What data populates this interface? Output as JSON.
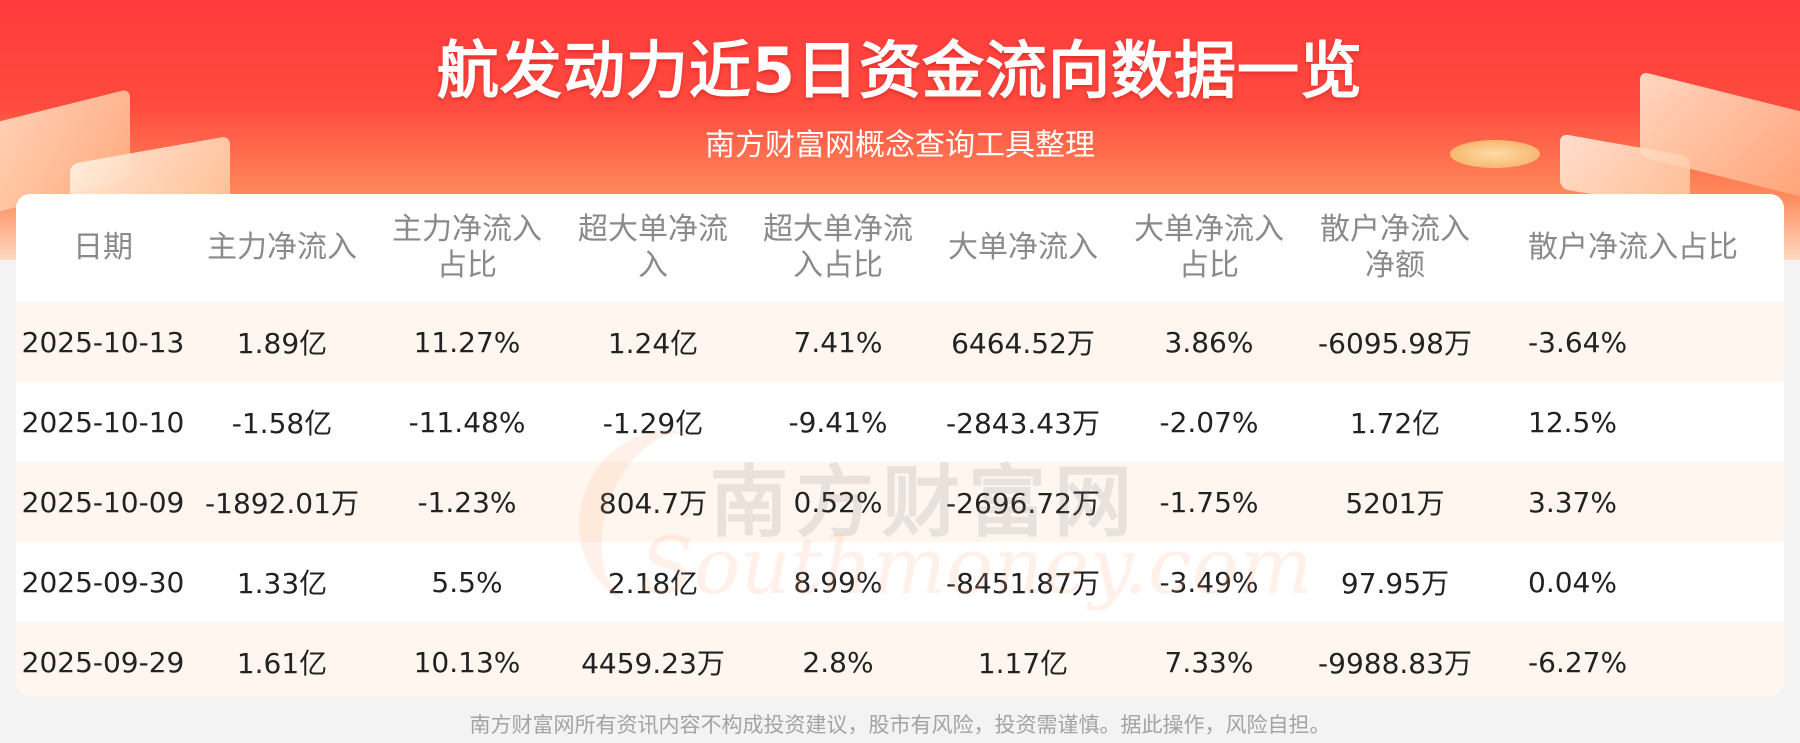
{
  "header": {
    "title": "航发动力近5日资金流向数据一览",
    "subtitle": "南方财富网概念查询工具整理"
  },
  "table": {
    "columns": [
      "日期",
      "主力净流入",
      "主力净流入占比",
      "超大单净流入",
      "超大单净流入占比",
      "大单净流入",
      "大单净流入占比",
      "散户净流入净额",
      "散户净流入占比"
    ],
    "rows": [
      [
        "2025-10-13",
        "1.89亿",
        "11.27%",
        "1.24亿",
        "7.41%",
        "6464.52万",
        "3.86%",
        "-6095.98万",
        "-3.64%"
      ],
      [
        "2025-10-10",
        "-1.58亿",
        "-11.48%",
        "-1.29亿",
        "-9.41%",
        "-2843.43万",
        "-2.07%",
        "1.72亿",
        "12.5%"
      ],
      [
        "2025-10-09",
        "-1892.01万",
        "-1.23%",
        "804.7万",
        "0.52%",
        "-2696.72万",
        "-1.75%",
        "5201万",
        "3.37%"
      ],
      [
        "2025-09-30",
        "1.33亿",
        "5.5%",
        "2.18亿",
        "8.99%",
        "-8451.87万",
        "-3.49%",
        "97.95万",
        "0.04%"
      ],
      [
        "2025-09-29",
        "1.61亿",
        "10.13%",
        "4459.23万",
        "2.8%",
        "1.17亿",
        "7.33%",
        "-9988.83万",
        "-6.27%"
      ]
    ]
  },
  "watermark": {
    "cn": "南方财富网",
    "en": "Southmoney.com"
  },
  "footer": {
    "disclaimer": "南方财富网所有资讯内容不构成投资建议，股市有风险，投资需谨慎。据此操作，风险自担。"
  },
  "colors": {
    "banner_red": "#ff3b3b",
    "row_stripe": "#fff6ef",
    "header_text": "#8a8a8a"
  }
}
